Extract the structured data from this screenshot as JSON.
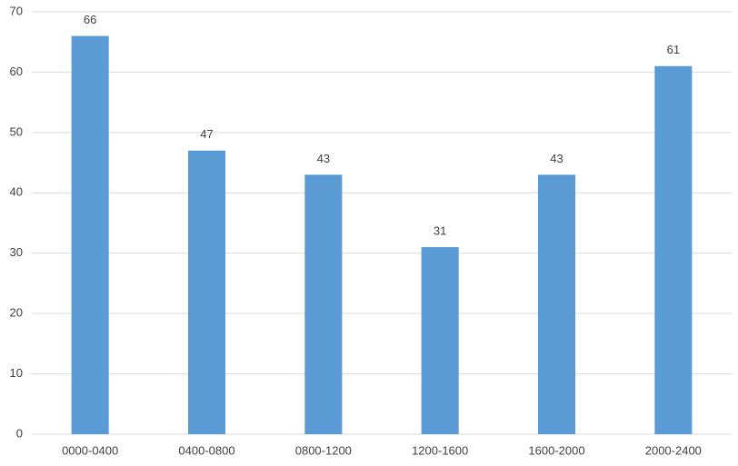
{
  "chart_data": {
    "type": "bar",
    "categories": [
      "0000-0400",
      "0400-0800",
      "0800-1200",
      "1200-1600",
      "1600-2000",
      "2000-2400"
    ],
    "values": [
      66,
      47,
      43,
      31,
      43,
      61
    ],
    "color": "#5b9bd5",
    "ylim": [
      0,
      70
    ],
    "yticks": [
      0,
      10,
      20,
      30,
      40,
      50,
      60,
      70
    ],
    "grid": true
  }
}
